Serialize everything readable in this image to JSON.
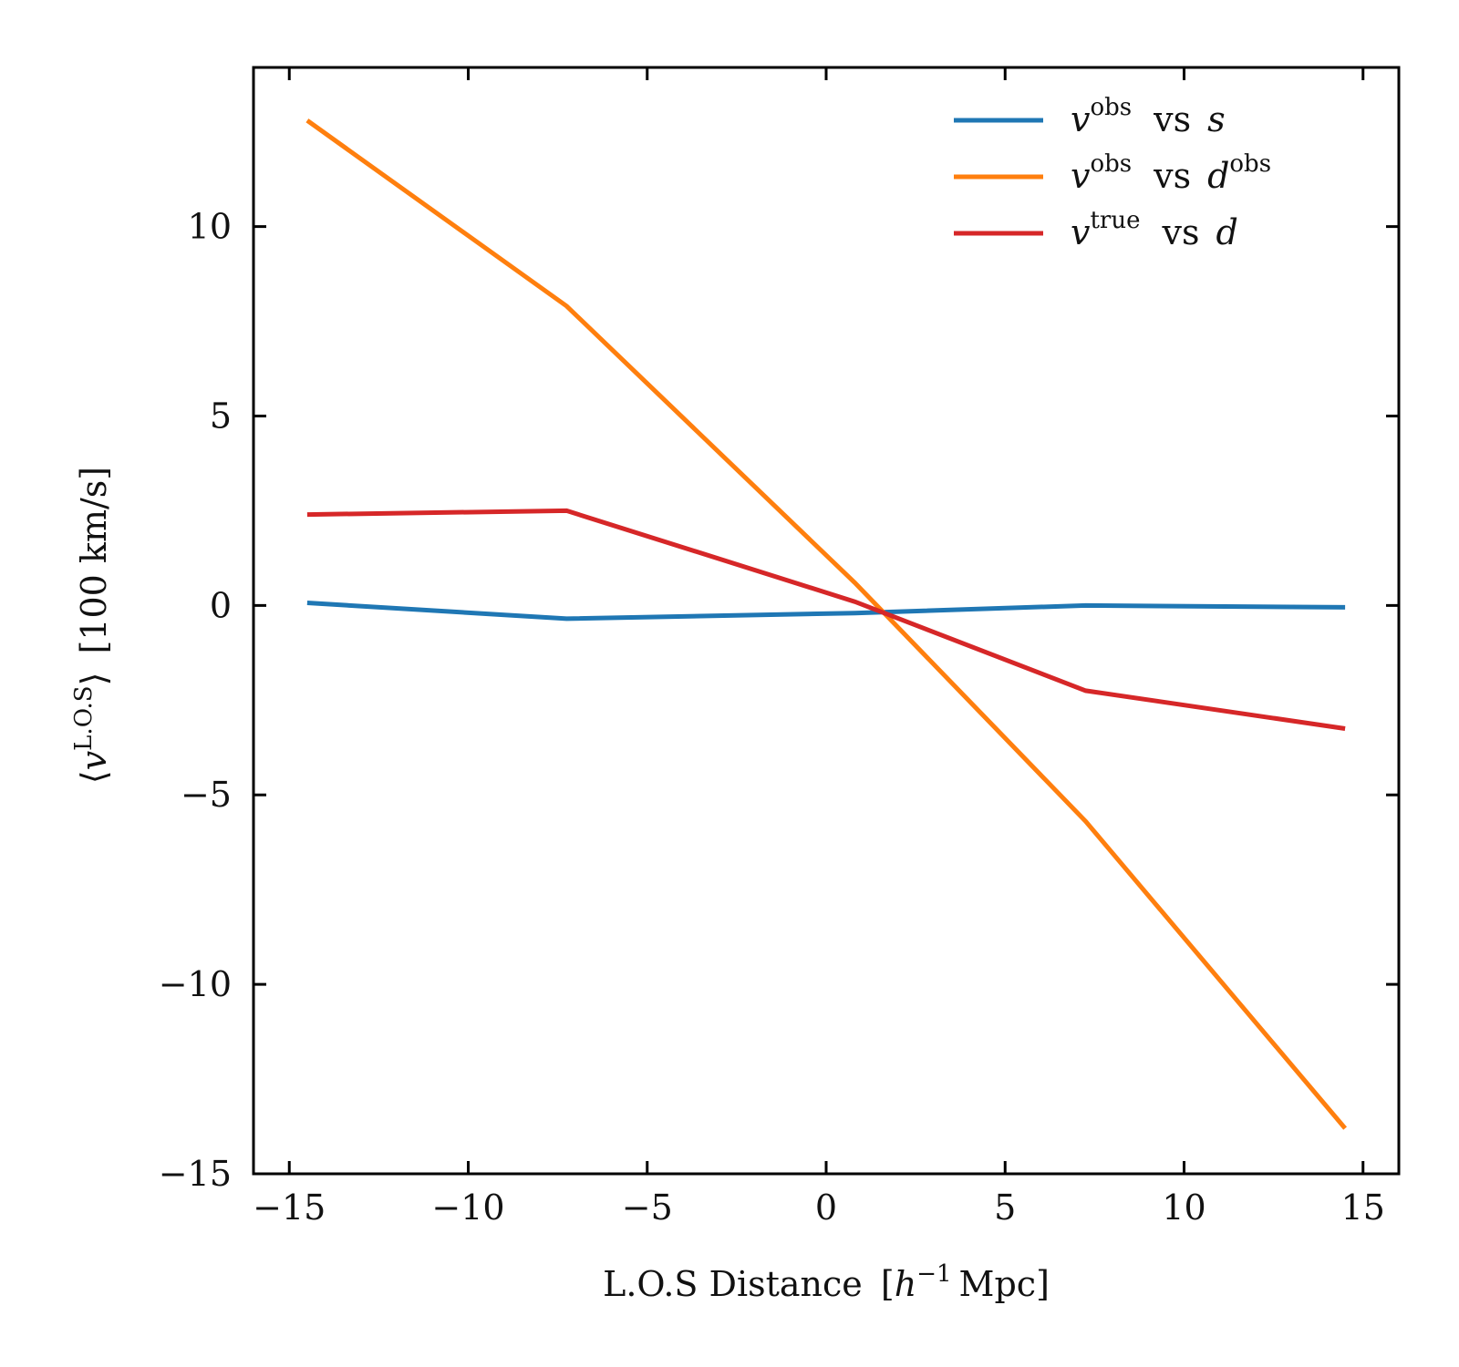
{
  "chart_data": {
    "type": "line",
    "title": "",
    "xlabel": {
      "main": "L.O.S Distance",
      "unit_open": "[",
      "unit_h": "h",
      "unit_exp": "−1",
      "unit_rest": "Mpc",
      "unit_close": "]"
    },
    "ylabel": {
      "open": "⟨",
      "var": "v",
      "sup": "L.O.S",
      "close": "⟩",
      "unit": "[100 km/s]"
    },
    "xlim": [
      -16,
      16
    ],
    "ylim": [
      -15,
      14.2
    ],
    "xticks": [
      -15,
      -10,
      -5,
      0,
      5,
      10,
      15
    ],
    "xtick_labels": [
      "−15",
      "−10",
      "−5",
      "0",
      "5",
      "10",
      "15"
    ],
    "yticks": [
      -15,
      -10,
      -5,
      0,
      5,
      10
    ],
    "ytick_labels": [
      "−15",
      "−10",
      "−5",
      "0",
      "5",
      "10"
    ],
    "grid": false,
    "legend_position": "top-right",
    "x": [
      -14.5,
      -7.25,
      0.8,
      7.25,
      14.5
    ],
    "series": [
      {
        "name": "v^obs vs s",
        "legend": {
          "var": "v",
          "sup": "obs",
          "mid": "vs",
          "coord": "s",
          "coord_sup": ""
        },
        "color": "#1f77b4",
        "values": [
          0.07,
          -0.35,
          -0.2,
          0.0,
          -0.05
        ]
      },
      {
        "name": "v^obs vs d^obs",
        "legend": {
          "var": "v",
          "sup": "obs",
          "mid": "vs",
          "coord": "d",
          "coord_sup": "obs"
        },
        "color": "#ff7f0e",
        "values": [
          12.8,
          7.9,
          0.6,
          -5.7,
          -13.8
        ]
      },
      {
        "name": "v^true vs d",
        "legend": {
          "var": "v",
          "sup": "true",
          "mid": "vs",
          "coord": "d",
          "coord_sup": ""
        },
        "color": "#d62728",
        "values": [
          2.4,
          2.5,
          0.1,
          -2.25,
          -3.25
        ]
      }
    ]
  }
}
